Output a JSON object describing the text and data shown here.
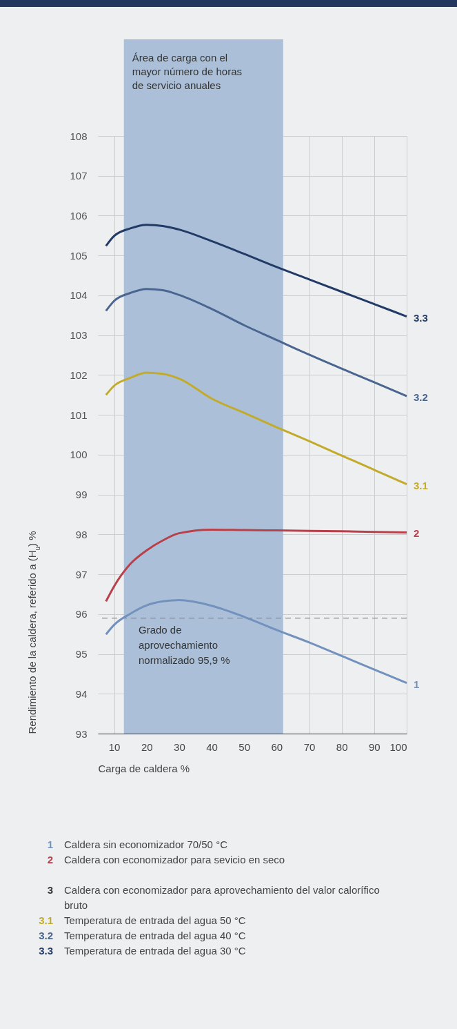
{
  "chart_data": {
    "type": "line",
    "xlabel": "Carga de caldera %",
    "ylabel": "Rendimiento de la caldera, referido a (H$_{u}$) %",
    "x": [
      7.5,
      10,
      15,
      20,
      25,
      30,
      40,
      50,
      60,
      70,
      80,
      90,
      100
    ],
    "series": [
      {
        "name": "1",
        "color": "#7291bd",
        "values": [
          95.49,
          95.73,
          96.01,
          96.22,
          96.32,
          96.35,
          96.21,
          95.93,
          95.6,
          95.29,
          94.95,
          94.61,
          94.27
        ]
      },
      {
        "name": "2",
        "color": "#b8404b",
        "values": [
          96.32,
          96.7,
          97.26,
          97.6,
          97.85,
          98.03,
          98.12,
          98.11,
          98.1,
          98.09,
          98.08,
          98.06,
          98.05
        ]
      },
      {
        "name": "3.1",
        "color": "#c2ab2a",
        "values": [
          101.5,
          101.73,
          101.93,
          102.06,
          102.03,
          101.91,
          101.41,
          101.05,
          100.69,
          100.34,
          99.98,
          99.62,
          99.26
        ]
      },
      {
        "name": "3.2",
        "color": "#4a6590",
        "values": [
          103.61,
          103.86,
          104.06,
          104.16,
          104.13,
          104.01,
          103.66,
          103.25,
          102.88,
          102.51,
          102.16,
          101.82,
          101.47
        ]
      },
      {
        "name": "3.3",
        "color": "#223a66",
        "values": [
          105.24,
          105.49,
          105.68,
          105.77,
          105.74,
          105.65,
          105.36,
          105.04,
          104.71,
          104.4,
          104.09,
          103.78,
          103.47
        ]
      }
    ],
    "xlim": [
      5,
      100
    ],
    "xticks": [
      10,
      20,
      30,
      40,
      50,
      60,
      70,
      80,
      90,
      100
    ],
    "ylim": [
      93,
      108
    ],
    "yticks": [
      93,
      94,
      95,
      96,
      97,
      98,
      99,
      100,
      101,
      102,
      103,
      104,
      105,
      106,
      107,
      108
    ],
    "grid": true,
    "line_style": "solid",
    "bands": [
      {
        "axis": "x",
        "from": 13,
        "to": 62,
        "label": "Área de carga con el mayor número de horas de servicio anuales",
        "color": "#abc0d8"
      }
    ],
    "ref_lines": [
      {
        "axis": "y",
        "value": 95.9,
        "label": "Grado de aprovechamiento normalizado 95,9 %",
        "color": "#888888",
        "line_style": "dashed"
      }
    ],
    "annotations": [
      "Caldera sin economizador 70/50 °C",
      "Caldera con economizador para sevicio en seco",
      "3",
      "Caldera con economizador para aprovechamiento del valor calorífico bruto",
      "Temperatura de entrada del agua 50 °C",
      "Temperatura de entrada del agua 40 °C",
      "Temperatura de entrada del agua 30 °C"
    ]
  }
}
